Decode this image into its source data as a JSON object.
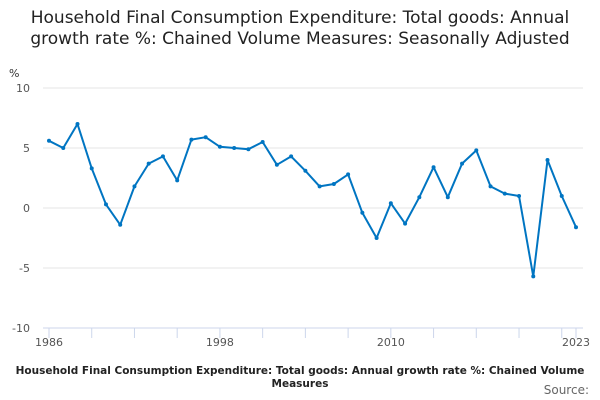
{
  "chart_data": {
    "type": "line",
    "title": "Household Final Consumption Expenditure: Total goods: Annual growth rate %: Chained Volume Measures: Seasonally Adjusted",
    "ylabel": "%",
    "xlabel": "Household Final Consumption Expenditure: Total goods: Annual growth rate %: Chained Volume Measures",
    "source": "Source:",
    "ylim": [
      -10,
      10
    ],
    "yticks": [
      10,
      5,
      0,
      -5,
      -10
    ],
    "xlim": [
      1986,
      2023
    ],
    "xtick_labels": [
      1986,
      1998,
      2010,
      2023
    ],
    "grid": true,
    "line_color": "#0075c2",
    "x": [
      1986,
      1987,
      1988,
      1989,
      1990,
      1991,
      1992,
      1993,
      1994,
      1995,
      1996,
      1997,
      1998,
      1999,
      2000,
      2001,
      2002,
      2003,
      2004,
      2005,
      2006,
      2007,
      2008,
      2009,
      2010,
      2011,
      2012,
      2013,
      2014,
      2015,
      2016,
      2017,
      2018,
      2019,
      2020,
      2021,
      2022,
      2023
    ],
    "values": [
      5.6,
      5.0,
      7.0,
      3.3,
      0.3,
      -1.4,
      1.8,
      3.7,
      4.3,
      2.3,
      5.7,
      5.9,
      5.1,
      5.0,
      4.9,
      5.5,
      3.6,
      4.3,
      3.1,
      1.8,
      2.0,
      2.8,
      -0.4,
      -2.5,
      0.4,
      -1.3,
      0.9,
      3.4,
      0.9,
      3.7,
      4.8,
      1.8,
      1.2,
      1.0,
      -5.7,
      4.0,
      1.0,
      -1.6
    ]
  }
}
